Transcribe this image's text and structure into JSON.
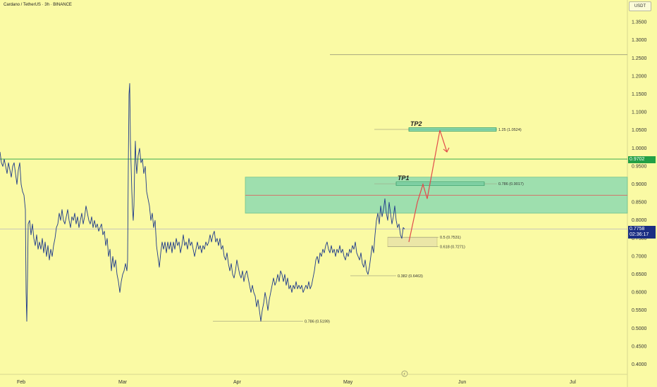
{
  "header": {
    "title": "Cardano / TetherUS · 3h · BINANCE"
  },
  "axis": {
    "currency": "USDT"
  },
  "badges": {
    "level": {
      "text": "0.9702",
      "color": "#22a046"
    },
    "last": {
      "price": "0.7758",
      "countdown": "02:36:17",
      "color": "#1a2e83"
    }
  },
  "chart_data": {
    "type": "line",
    "title": "Cardano / TetherUS · 3h · BINANCE",
    "ylim": [
      0.38,
      1.4
    ],
    "y_ticks": [
      "1.3500",
      "1.3000",
      "1.2500",
      "1.2000",
      "1.1500",
      "1.1000",
      "1.0500",
      "1.0000",
      "0.9500",
      "0.9000",
      "0.8500",
      "0.8000",
      "0.7500",
      "0.7000",
      "0.6500",
      "0.6000",
      "0.5500",
      "0.5000",
      "0.4500",
      "0.4000"
    ],
    "x_ticks": [
      "Feb",
      "Mar",
      "Apr",
      "May",
      "Jun",
      "Jul"
    ],
    "series": [
      {
        "values": [
          [
            0,
            0.99
          ],
          [
            2,
            0.96
          ],
          [
            4,
            0.95
          ],
          [
            6,
            0.97
          ],
          [
            8,
            0.95
          ],
          [
            10,
            0.93
          ],
          [
            12,
            0.96
          ],
          [
            14,
            0.94
          ],
          [
            16,
            0.92
          ],
          [
            18,
            0.95
          ],
          [
            20,
            0.96
          ],
          [
            22,
            0.93
          ],
          [
            24,
            0.9
          ],
          [
            26,
            0.94
          ],
          [
            28,
            0.96
          ],
          [
            30,
            0.9
          ],
          [
            32,
            0.88
          ],
          [
            34,
            0.87
          ],
          [
            36,
            0.83
          ],
          [
            37,
            0.6
          ],
          [
            38,
            0.52
          ],
          [
            39,
            0.64
          ],
          [
            40,
            0.79
          ],
          [
            42,
            0.8
          ],
          [
            44,
            0.76
          ],
          [
            46,
            0.79
          ],
          [
            48,
            0.75
          ],
          [
            50,
            0.73
          ],
          [
            52,
            0.76
          ],
          [
            54,
            0.72
          ],
          [
            56,
            0.74
          ],
          [
            58,
            0.72
          ],
          [
            60,
            0.75
          ],
          [
            62,
            0.71
          ],
          [
            64,
            0.74
          ],
          [
            66,
            0.7
          ],
          [
            68,
            0.73
          ],
          [
            70,
            0.69
          ],
          [
            72,
            0.72
          ],
          [
            74,
            0.7
          ],
          [
            76,
            0.73
          ],
          [
            78,
            0.75
          ],
          [
            80,
            0.78
          ],
          [
            82,
            0.79
          ],
          [
            84,
            0.82
          ],
          [
            86,
            0.8
          ],
          [
            88,
            0.83
          ],
          [
            90,
            0.8
          ],
          [
            92,
            0.79
          ],
          [
            94,
            0.81
          ],
          [
            96,
            0.83
          ],
          [
            98,
            0.8
          ],
          [
            100,
            0.78
          ],
          [
            102,
            0.81
          ],
          [
            104,
            0.8
          ],
          [
            106,
            0.82
          ],
          [
            108,
            0.79
          ],
          [
            110,
            0.81
          ],
          [
            112,
            0.78
          ],
          [
            114,
            0.8
          ],
          [
            116,
            0.82
          ],
          [
            118,
            0.79
          ],
          [
            120,
            0.81
          ],
          [
            122,
            0.84
          ],
          [
            124,
            0.82
          ],
          [
            126,
            0.8
          ],
          [
            128,
            0.79
          ],
          [
            130,
            0.81
          ],
          [
            132,
            0.78
          ],
          [
            134,
            0.8
          ],
          [
            136,
            0.78
          ],
          [
            138,
            0.79
          ],
          [
            140,
            0.77
          ],
          [
            142,
            0.78
          ],
          [
            144,
            0.79
          ],
          [
            146,
            0.76
          ],
          [
            148,
            0.77
          ],
          [
            150,
            0.73
          ],
          [
            152,
            0.75
          ],
          [
            154,
            0.7
          ],
          [
            156,
            0.72
          ],
          [
            158,
            0.66
          ],
          [
            160,
            0.7
          ],
          [
            162,
            0.67
          ],
          [
            164,
            0.69
          ],
          [
            166,
            0.65
          ],
          [
            168,
            0.63
          ],
          [
            170,
            0.6
          ],
          [
            172,
            0.63
          ],
          [
            174,
            0.65
          ],
          [
            176,
            0.66
          ],
          [
            178,
            0.68
          ],
          [
            180,
            0.66
          ],
          [
            181,
            0.69
          ],
          [
            182,
            0.95
          ],
          [
            183,
            1.15
          ],
          [
            184,
            1.18
          ],
          [
            185,
            1.02
          ],
          [
            186,
            0.95
          ],
          [
            187,
            0.88
          ],
          [
            188,
            0.83
          ],
          [
            189,
            0.8
          ],
          [
            190,
            0.84
          ],
          [
            191,
            0.95
          ],
          [
            192,
            1.02
          ],
          [
            193,
            0.96
          ],
          [
            194,
            0.93
          ],
          [
            196,
            0.98
          ],
          [
            198,
            1.0
          ],
          [
            200,
            0.96
          ],
          [
            202,
            0.97
          ],
          [
            204,
            0.93
          ],
          [
            206,
            0.95
          ],
          [
            208,
            0.88
          ],
          [
            210,
            0.86
          ],
          [
            212,
            0.84
          ],
          [
            214,
            0.8
          ],
          [
            216,
            0.82
          ],
          [
            218,
            0.78
          ],
          [
            220,
            0.8
          ],
          [
            222,
            0.73
          ],
          [
            224,
            0.7
          ],
          [
            226,
            0.67
          ],
          [
            228,
            0.71
          ],
          [
            230,
            0.74
          ],
          [
            232,
            0.72
          ],
          [
            234,
            0.74
          ],
          [
            236,
            0.71
          ],
          [
            238,
            0.74
          ],
          [
            240,
            0.72
          ],
          [
            242,
            0.74
          ],
          [
            244,
            0.71
          ],
          [
            246,
            0.74
          ],
          [
            248,
            0.72
          ],
          [
            250,
            0.75
          ],
          [
            252,
            0.73
          ],
          [
            254,
            0.74
          ],
          [
            256,
            0.71
          ],
          [
            258,
            0.73
          ],
          [
            260,
            0.76
          ],
          [
            262,
            0.73
          ],
          [
            264,
            0.74
          ],
          [
            266,
            0.72
          ],
          [
            268,
            0.75
          ],
          [
            270,
            0.73
          ],
          [
            272,
            0.74
          ],
          [
            274,
            0.72
          ],
          [
            276,
            0.7
          ],
          [
            278,
            0.72
          ],
          [
            280,
            0.74
          ],
          [
            282,
            0.72
          ],
          [
            284,
            0.73
          ],
          [
            286,
            0.71
          ],
          [
            288,
            0.73
          ],
          [
            290,
            0.72
          ],
          [
            292,
            0.74
          ],
          [
            294,
            0.73
          ],
          [
            296,
            0.74
          ],
          [
            298,
            0.76
          ],
          [
            300,
            0.74
          ],
          [
            302,
            0.76
          ],
          [
            304,
            0.77
          ],
          [
            306,
            0.74
          ],
          [
            308,
            0.75
          ],
          [
            310,
            0.73
          ],
          [
            312,
            0.75
          ],
          [
            314,
            0.72
          ],
          [
            316,
            0.73
          ],
          [
            318,
            0.7
          ],
          [
            320,
            0.69
          ],
          [
            322,
            0.71
          ],
          [
            324,
            0.68
          ],
          [
            326,
            0.66
          ],
          [
            328,
            0.68
          ],
          [
            330,
            0.65
          ],
          [
            332,
            0.64
          ],
          [
            334,
            0.66
          ],
          [
            336,
            0.69
          ],
          [
            338,
            0.67
          ],
          [
            340,
            0.65
          ],
          [
            342,
            0.64
          ],
          [
            344,
            0.66
          ],
          [
            346,
            0.63
          ],
          [
            348,
            0.65
          ],
          [
            350,
            0.66
          ],
          [
            352,
            0.64
          ],
          [
            354,
            0.62
          ],
          [
            356,
            0.6
          ],
          [
            358,
            0.62
          ],
          [
            360,
            0.6
          ],
          [
            362,
            0.59
          ],
          [
            364,
            0.56
          ],
          [
            366,
            0.58
          ],
          [
            368,
            0.55
          ],
          [
            370,
            0.52
          ],
          [
            372,
            0.55
          ],
          [
            374,
            0.57
          ],
          [
            376,
            0.6
          ],
          [
            378,
            0.58
          ],
          [
            380,
            0.55
          ],
          [
            382,
            0.58
          ],
          [
            384,
            0.6
          ],
          [
            386,
            0.62
          ],
          [
            388,
            0.64
          ],
          [
            390,
            0.62
          ],
          [
            392,
            0.63
          ],
          [
            394,
            0.65
          ],
          [
            396,
            0.63
          ],
          [
            398,
            0.66
          ],
          [
            400,
            0.65
          ],
          [
            402,
            0.63
          ],
          [
            404,
            0.65
          ],
          [
            406,
            0.62
          ],
          [
            408,
            0.64
          ],
          [
            410,
            0.61
          ],
          [
            412,
            0.62
          ],
          [
            414,
            0.6
          ],
          [
            416,
            0.62
          ],
          [
            418,
            0.61
          ],
          [
            420,
            0.63
          ],
          [
            422,
            0.61
          ],
          [
            424,
            0.62
          ],
          [
            426,
            0.61
          ],
          [
            428,
            0.62
          ],
          [
            430,
            0.6
          ],
          [
            432,
            0.61
          ],
          [
            434,
            0.62
          ],
          [
            436,
            0.61
          ],
          [
            438,
            0.63
          ],
          [
            440,
            0.61
          ],
          [
            442,
            0.62
          ],
          [
            444,
            0.64
          ],
          [
            446,
            0.66
          ],
          [
            448,
            0.69
          ],
          [
            450,
            0.7
          ],
          [
            452,
            0.68
          ],
          [
            454,
            0.71
          ],
          [
            456,
            0.7
          ],
          [
            458,
            0.72
          ],
          [
            460,
            0.71
          ],
          [
            462,
            0.73
          ],
          [
            464,
            0.74
          ],
          [
            466,
            0.72
          ],
          [
            468,
            0.71
          ],
          [
            470,
            0.73
          ],
          [
            472,
            0.71
          ],
          [
            474,
            0.72
          ],
          [
            476,
            0.7
          ],
          [
            478,
            0.72
          ],
          [
            480,
            0.71
          ],
          [
            482,
            0.73
          ],
          [
            484,
            0.71
          ],
          [
            486,
            0.72
          ],
          [
            488,
            0.7
          ],
          [
            490,
            0.69
          ],
          [
            492,
            0.71
          ],
          [
            494,
            0.7
          ],
          [
            496,
            0.72
          ],
          [
            498,
            0.71
          ],
          [
            500,
            0.73
          ],
          [
            502,
            0.72
          ],
          [
            504,
            0.74
          ],
          [
            506,
            0.71
          ],
          [
            508,
            0.7
          ],
          [
            510,
            0.69
          ],
          [
            512,
            0.71
          ],
          [
            514,
            0.68
          ],
          [
            516,
            0.67
          ],
          [
            518,
            0.69
          ],
          [
            520,
            0.66
          ],
          [
            522,
            0.65
          ],
          [
            524,
            0.67
          ],
          [
            526,
            0.7
          ],
          [
            528,
            0.73
          ],
          [
            530,
            0.71
          ],
          [
            532,
            0.76
          ],
          [
            534,
            0.8
          ],
          [
            536,
            0.82
          ],
          [
            538,
            0.79
          ],
          [
            540,
            0.84
          ],
          [
            542,
            0.81
          ],
          [
            544,
            0.83
          ],
          [
            546,
            0.86
          ],
          [
            548,
            0.82
          ],
          [
            550,
            0.8
          ],
          [
            552,
            0.85
          ],
          [
            554,
            0.82
          ],
          [
            556,
            0.79
          ],
          [
            558,
            0.81
          ],
          [
            560,
            0.84
          ],
          [
            562,
            0.8
          ],
          [
            564,
            0.78
          ],
          [
            566,
            0.79
          ],
          [
            568,
            0.76
          ],
          [
            570,
            0.75
          ],
          [
            572,
            0.78
          ],
          [
            574,
            0.7758
          ]
        ]
      }
    ],
    "fib_levels": [
      {
        "label": "1.25 (1.0524)",
        "value": 1.0524
      },
      {
        "label": "0.786 (0.9017)",
        "value": 0.9017
      },
      {
        "label": "0.5 (0.7531)",
        "value": 0.7531
      },
      {
        "label": "0.618 (0.7271)",
        "value": 0.7271
      },
      {
        "label": "0.382 (0.6463)",
        "value": 0.6463
      },
      {
        "label": "0.786 (0.5199)",
        "value": 0.5199
      }
    ],
    "zones": [
      {
        "from": 0.82,
        "to": 0.92,
        "color": "#8fdbb0"
      },
      {
        "from": 0.727,
        "to": 0.753,
        "color": "#eae4a8"
      }
    ],
    "horizontal_lines": [
      {
        "value": 0.9702,
        "color": "#22a046"
      },
      {
        "value": 0.87,
        "color": "#e05656"
      },
      {
        "value": 1.26,
        "color": "#9a9a7a"
      },
      {
        "value": 0.7758,
        "color": "#8a8ad0"
      }
    ],
    "targets": [
      {
        "label": "TP1",
        "value": 0.9017
      },
      {
        "label": "TP2",
        "value": 1.0524
      }
    ],
    "projection": [
      [
        580,
        0.74
      ],
      [
        592,
        0.85
      ],
      [
        600,
        0.9
      ],
      [
        606,
        0.86
      ],
      [
        624,
        1.05
      ],
      [
        634,
        0.99
      ]
    ],
    "time_marker": "⚡"
  }
}
